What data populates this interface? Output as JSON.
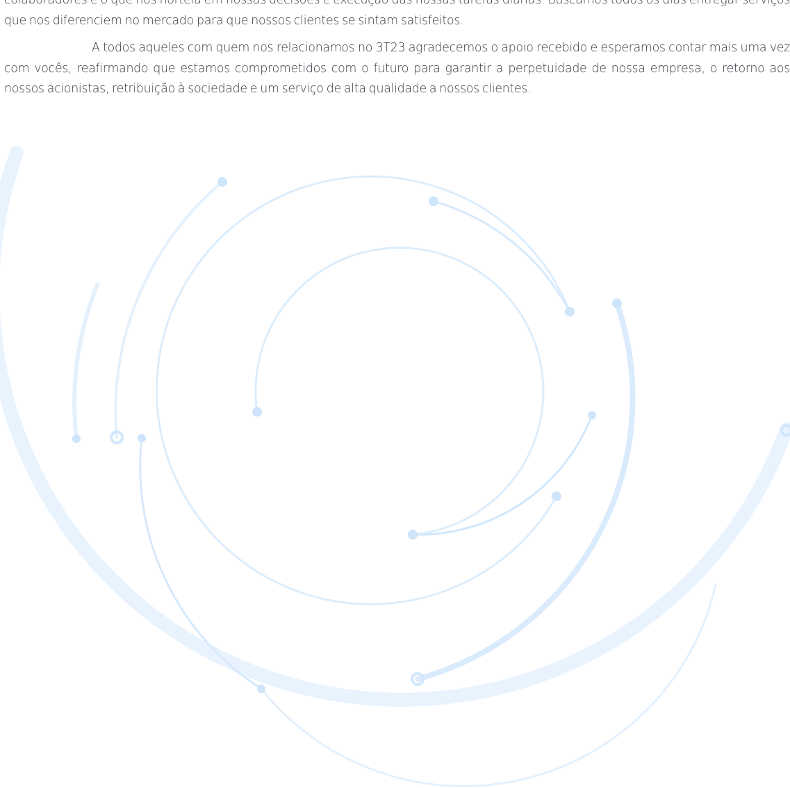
{
  "document": {
    "paragraphs": [
      {
        "text": "colaboradores e o que nos norteia em nossas decisões e execução das nossas tarefas diárias. Buscamos todos os dias entregar serviços que nos diferenciem no mercado para que nossos clientes se sintam satisfeitos."
      },
      {
        "text": "A todos aqueles com quem nos relacionamos no 3T23 agradecemos o apoio recebido e esperamos contar mais uma vez com vocês, reafirmando que estamos comprometidos com o futuro para garantir a perpetuidade de nossa empresa, o retorno aos nossos acionistas, retribuição à sociedade e um serviço de alta qualidade a nossos clientes."
      }
    ]
  },
  "decoration": {
    "icon": "concentric-circuit-arcs-watermark",
    "colors": {
      "light": "#e4f1fd",
      "medium": "#d2e7fb",
      "dot": "#cfe5fb",
      "text": "#333a40"
    }
  }
}
